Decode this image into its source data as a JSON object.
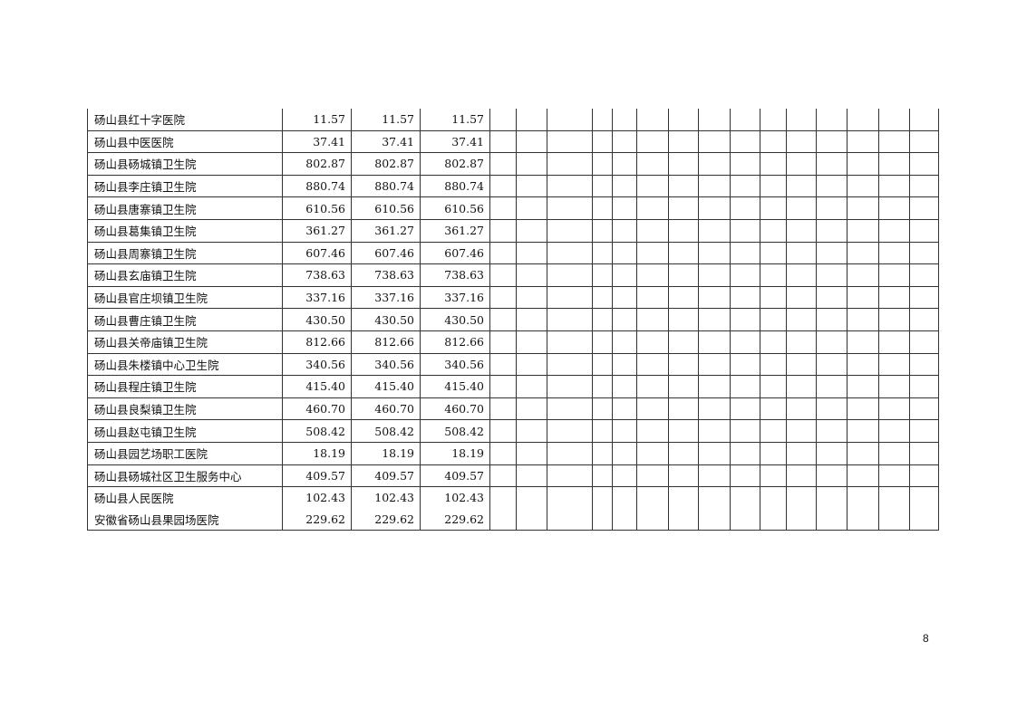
{
  "table": {
    "rows": [
      {
        "name": "砀山县红十字医院",
        "v1": "11.57",
        "v2": "11.57",
        "v3": "11.57"
      },
      {
        "name": "砀山县中医医院",
        "v1": "37.41",
        "v2": "37.41",
        "v3": "37.41"
      },
      {
        "name": "砀山县砀城镇卫生院",
        "v1": "802.87",
        "v2": "802.87",
        "v3": "802.87"
      },
      {
        "name": "砀山县李庄镇卫生院",
        "v1": "880.74",
        "v2": "880.74",
        "v3": "880.74"
      },
      {
        "name": "砀山县唐寨镇卫生院",
        "v1": "610.56",
        "v2": "610.56",
        "v3": "610.56"
      },
      {
        "name": "砀山县葛集镇卫生院",
        "v1": "361.27",
        "v2": "361.27",
        "v3": "361.27"
      },
      {
        "name": "砀山县周寨镇卫生院",
        "v1": "607.46",
        "v2": "607.46",
        "v3": "607.46"
      },
      {
        "name": "砀山县玄庙镇卫生院",
        "v1": "738.63",
        "v2": "738.63",
        "v3": "738.63"
      },
      {
        "name": "砀山县官庄坝镇卫生院",
        "v1": "337.16",
        "v2": "337.16",
        "v3": "337.16"
      },
      {
        "name": "砀山县曹庄镇卫生院",
        "v1": "430.50",
        "v2": "430.50",
        "v3": "430.50"
      },
      {
        "name": "砀山县关帝庙镇卫生院",
        "v1": "812.66",
        "v2": "812.66",
        "v3": "812.66"
      },
      {
        "name": "砀山县朱楼镇中心卫生院",
        "v1": "340.56",
        "v2": "340.56",
        "v3": "340.56"
      },
      {
        "name": "砀山县程庄镇卫生院",
        "v1": "415.40",
        "v2": "415.40",
        "v3": "415.40"
      },
      {
        "name": "砀山县良梨镇卫生院",
        "v1": "460.70",
        "v2": "460.70",
        "v3": "460.70"
      },
      {
        "name": "砀山县赵屯镇卫生院",
        "v1": "508.42",
        "v2": "508.42",
        "v3": "508.42"
      },
      {
        "name": "砀山县园艺场职工医院",
        "v1": "18.19",
        "v2": "18.19",
        "v3": "18.19"
      },
      {
        "name": "砀山县砀城社区卫生服务中心",
        "v1": "409.57",
        "v2": "409.57",
        "v3": "409.57"
      },
      {
        "name": "砀山县人民医院",
        "v1": "102.43",
        "v2": "102.43",
        "v3": "102.43"
      },
      {
        "name": "安徽省砀山县果园场医院",
        "v1": "229.62",
        "v2": "229.62",
        "v3": "229.62"
      }
    ]
  },
  "page_number": "8"
}
